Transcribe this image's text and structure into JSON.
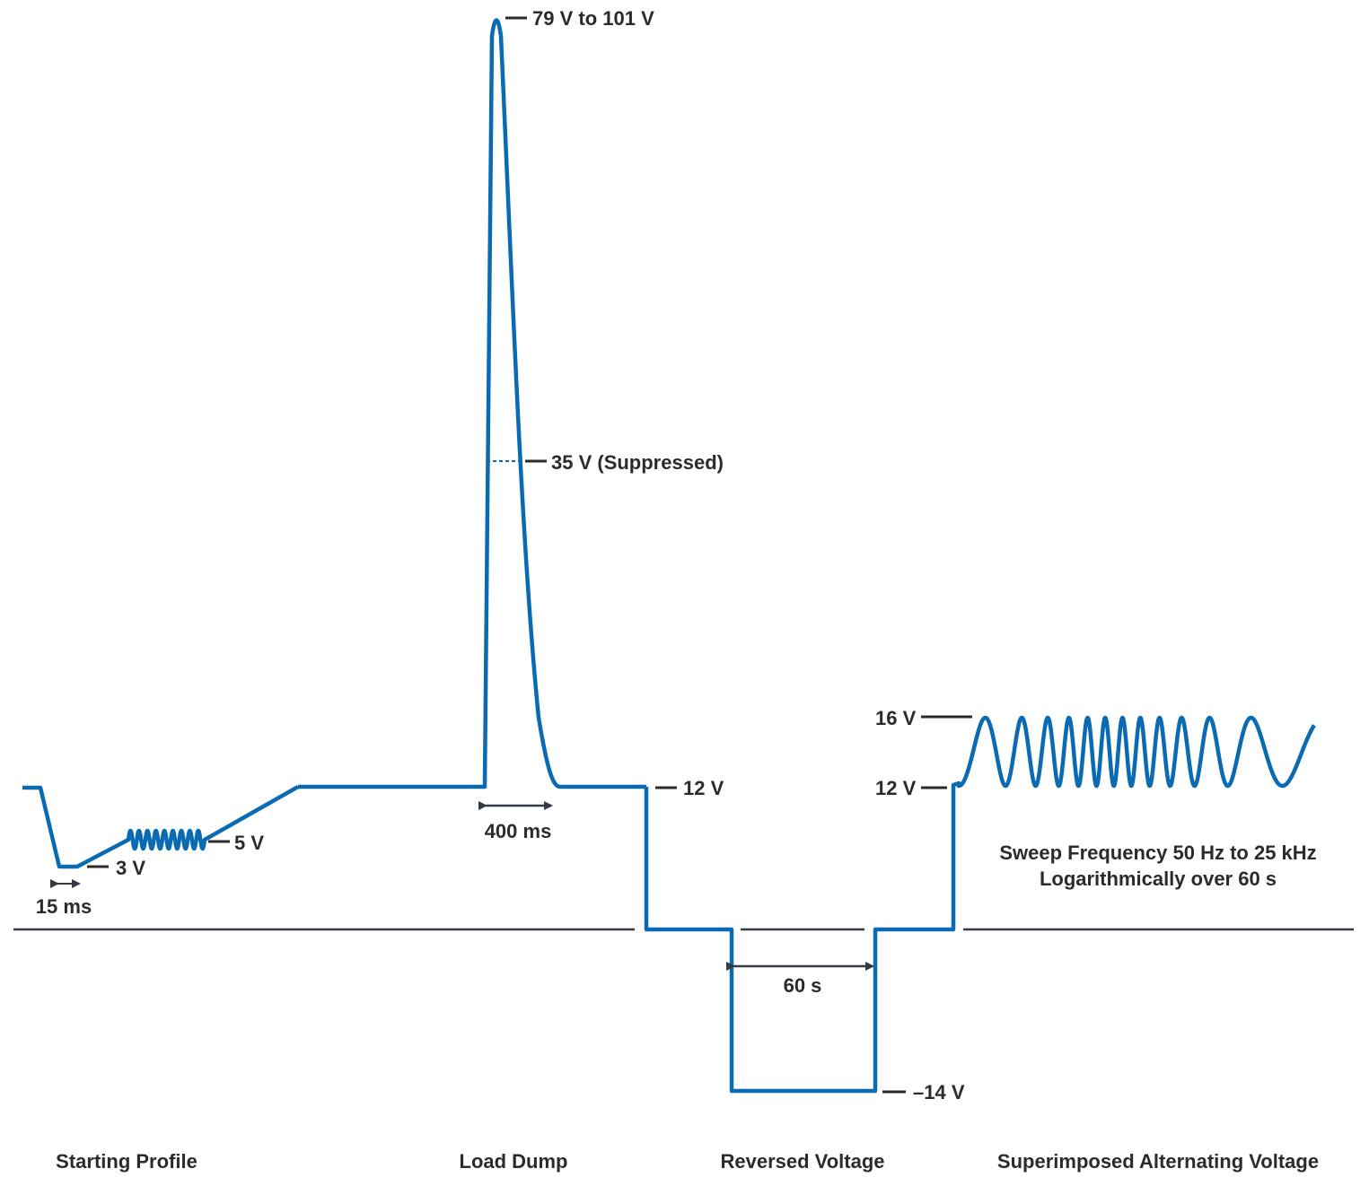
{
  "levels": {
    "peak": "79 V to 101 V",
    "suppressed": "35 V (Suppressed)",
    "nominal_load_dump": "12 V",
    "start_dip": "3 V",
    "start_ripple": "5 V",
    "alt_high": "16 V",
    "alt_low": "12 V",
    "reverse": "–14 V"
  },
  "durations": {
    "start_dip": "15 ms",
    "load_dump": "400 ms",
    "reverse": "60 s"
  },
  "note": {
    "line1": "Sweep Frequency 50 Hz to 25 kHz",
    "line2": "Logarithmically over 60 s"
  },
  "sections": {
    "starting_profile": "Starting Profile",
    "load_dump": "Load Dump",
    "reversed_voltage": "Reversed Voltage",
    "superimposed": "Superimposed Alternating Voltage"
  },
  "colors": {
    "waveform": "#0a6ab2",
    "text": "#2b2b2b",
    "axis": "#333a44"
  }
}
